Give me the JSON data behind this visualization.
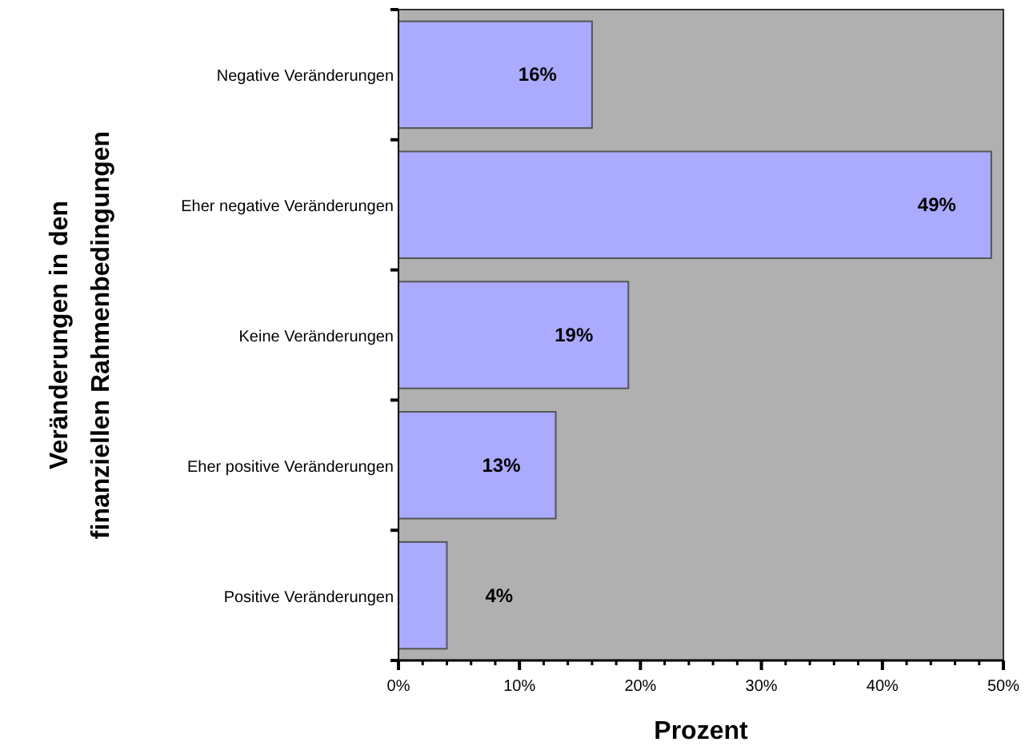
{
  "chart_data": {
    "type": "bar",
    "orientation": "horizontal",
    "xlabel": "Prozent",
    "ylabel": "Veränderungen in den finanziellen Rahmenbedingungen",
    "categories": [
      "Negative Veränderungen",
      "Eher negative Veränderungen",
      "Keine Veränderungen",
      "Eher positive Veränderungen",
      "Positive Veränderungen"
    ],
    "values": [
      16,
      49,
      19,
      13,
      4
    ],
    "color": "#aaaaff",
    "value_labels": [
      "16%",
      "49%",
      "19%",
      "13%",
      "4%"
    ],
    "xlim": [
      0,
      50
    ],
    "xticks": [
      {
        "value": 0,
        "label": "0%"
      },
      {
        "value": 2,
        "label": null
      },
      {
        "value": 4,
        "label": null
      },
      {
        "value": 6,
        "label": null
      },
      {
        "value": 8,
        "label": null
      },
      {
        "value": 10,
        "label": "10%"
      },
      {
        "value": 12,
        "label": null
      },
      {
        "value": 14,
        "label": null
      },
      {
        "value": 16,
        "label": null
      },
      {
        "value": 18,
        "label": null
      },
      {
        "value": 20,
        "label": "20%"
      },
      {
        "value": 22,
        "label": null
      },
      {
        "value": 24,
        "label": null
      },
      {
        "value": 26,
        "label": null
      },
      {
        "value": 28,
        "label": null
      },
      {
        "value": 30,
        "label": "30%"
      },
      {
        "value": 32,
        "label": null
      },
      {
        "value": 34,
        "label": null
      },
      {
        "value": 36,
        "label": null
      },
      {
        "value": 38,
        "label": null
      },
      {
        "value": 40,
        "label": "40%"
      },
      {
        "value": 42,
        "label": null
      },
      {
        "value": 44,
        "label": null
      },
      {
        "value": 46,
        "label": null
      },
      {
        "value": 48,
        "label": null
      },
      {
        "value": 50,
        "label": "50%"
      }
    ],
    "grid": false
  }
}
